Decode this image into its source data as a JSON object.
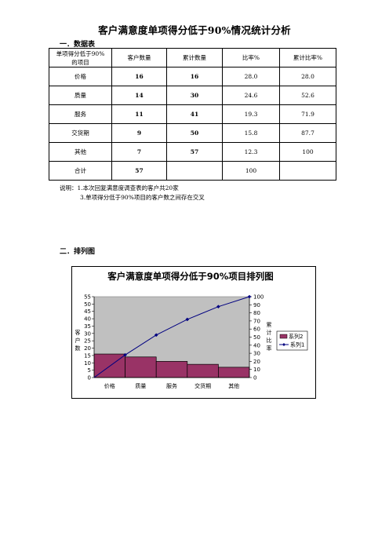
{
  "title": "客户满意度单项得分低于90%情况统计分析",
  "section1": "一．数据表",
  "section2": "二．排列图",
  "table": {
    "headers": [
      "单项得分低于90%的项目",
      "客户数量",
      "累计数量",
      "比率%",
      "累计比率%"
    ],
    "rows": [
      [
        "价格",
        "16",
        "16",
        "28.0",
        "28.0"
      ],
      [
        "质量",
        "14",
        "30",
        "24.6",
        "52.6"
      ],
      [
        "服务",
        "11",
        "41",
        "19.3",
        "71.9"
      ],
      [
        "交货期",
        "9",
        "50",
        "15.8",
        "87.7"
      ],
      [
        "其他",
        "7",
        "57",
        "12.3",
        "100"
      ],
      [
        "合计",
        "57",
        "",
        "100",
        ""
      ]
    ]
  },
  "notes": {
    "line1": "说明：1.本次回复满意度调查表的客户共20家",
    "line2": "3.单项得分低于90%项目的客户数之间存在交叉"
  },
  "chart_data": {
    "type": "bar",
    "title": "客户满意度单项得分低于90%项目排列图",
    "categories": [
      "价格",
      "质量",
      "服务",
      "交货期",
      "其他"
    ],
    "ylabel": "客户数",
    "y2label": "累计比率",
    "ylim": [
      0,
      55
    ],
    "y2lim": [
      0,
      100
    ],
    "yticks": [
      "0",
      "5",
      "10",
      "15",
      "20",
      "25",
      "30",
      "35",
      "40",
      "45",
      "50",
      "55"
    ],
    "y2ticks": [
      "0",
      "10",
      "20",
      "30",
      "40",
      "50",
      "60",
      "70",
      "80",
      "90",
      "100"
    ],
    "series": [
      {
        "name": "系列2",
        "type": "bar",
        "values": [
          16,
          14,
          11,
          9,
          7
        ]
      },
      {
        "name": "系列1",
        "type": "line",
        "axis": "right",
        "values": [
          28.0,
          52.6,
          71.9,
          87.7,
          100
        ]
      }
    ],
    "line_x_at_bar_edges": true,
    "plot_background": "#c0c0c0",
    "bar_color": "#993366",
    "line_color": "#000080",
    "legend_position": "right"
  }
}
